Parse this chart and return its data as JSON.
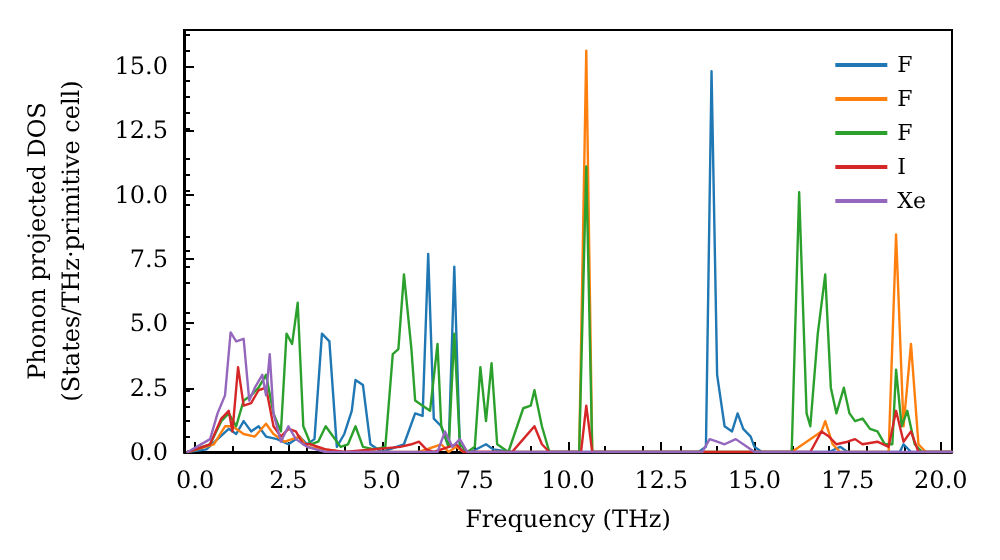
{
  "chart_data": {
    "type": "line",
    "xlabel": "Frequency (THz)",
    "ylabel": "Phonon projected DOS\n(States/THz·primitive cell)",
    "xlim": [
      -0.3,
      20.3
    ],
    "ylim": [
      0,
      16.4
    ],
    "xticks": [
      {
        "value": 0,
        "label": "0.0"
      },
      {
        "value": 2.5,
        "label": "2.5"
      },
      {
        "value": 5,
        "label": "5.0"
      },
      {
        "value": 7.5,
        "label": "7.5"
      },
      {
        "value": 10,
        "label": "10.0"
      },
      {
        "value": 12.5,
        "label": "12.5"
      },
      {
        "value": 15,
        "label": "15.0"
      },
      {
        "value": 17.5,
        "label": "17.5"
      },
      {
        "value": 20,
        "label": "20.0"
      }
    ],
    "yticks": [
      {
        "value": 0,
        "label": "0.0"
      },
      {
        "value": 2.5,
        "label": "2.5"
      },
      {
        "value": 5,
        "label": "5.0"
      },
      {
        "value": 7.5,
        "label": "7.5"
      },
      {
        "value": 10,
        "label": "10.0"
      },
      {
        "value": 12.5,
        "label": "12.5"
      },
      {
        "value": 15,
        "label": "15.0"
      }
    ],
    "grid": false,
    "legend": "top right",
    "marker": "none",
    "line_style": "solid",
    "series": [
      {
        "name": "F",
        "color": "#1f77b4",
        "x": [
          -0.2,
          0.3,
          0.6,
          0.9,
          1.1,
          1.3,
          1.5,
          1.7,
          1.9,
          2.2,
          2.5,
          2.8,
          3.0,
          3.2,
          3.4,
          3.6,
          3.8,
          4.0,
          4.2,
          4.3,
          4.5,
          4.7,
          5.0,
          5.6,
          5.9,
          6.1,
          6.25,
          6.4,
          6.6,
          6.8,
          6.95,
          7.1,
          7.4,
          7.8,
          8.0,
          8.5,
          13.5,
          13.7,
          13.85,
          14.0,
          14.2,
          14.4,
          14.55,
          14.7,
          14.9,
          15.0,
          15.2,
          17.0,
          17.3,
          17.5,
          18.9,
          19.0,
          19.2,
          20.3
        ],
        "values": [
          0,
          0.1,
          0.5,
          0.9,
          0.7,
          1.2,
          0.8,
          1.0,
          0.6,
          0.5,
          0.3,
          0.6,
          0.3,
          0.5,
          4.6,
          4.3,
          0.2,
          0.7,
          1.6,
          2.8,
          2.6,
          0.3,
          0,
          0.3,
          1.5,
          1.4,
          7.7,
          1.3,
          1.0,
          0.2,
          7.2,
          0.1,
          0,
          0.3,
          0.1,
          0,
          0,
          0.2,
          14.8,
          3.0,
          1.0,
          0.8,
          1.5,
          0.9,
          0.6,
          0.2,
          0,
          0,
          0.2,
          0,
          0,
          0.3,
          0,
          0
        ]
      },
      {
        "name": "F",
        "color": "#ff7f0e",
        "x": [
          -0.2,
          0.5,
          0.8,
          1.0,
          1.3,
          1.6,
          1.9,
          2.1,
          2.4,
          2.8,
          3.0,
          3.5,
          4.0,
          6.0,
          6.6,
          6.8,
          7.0,
          7.2,
          10.3,
          10.49,
          10.65,
          16.0,
          16.8,
          16.9,
          17.1,
          17.3,
          18.6,
          18.8,
          19.0,
          19.2,
          19.4,
          19.6,
          20.3
        ],
        "values": [
          0,
          0.3,
          1.0,
          1.0,
          0.7,
          0.6,
          1.1,
          0.7,
          0.4,
          0.6,
          0.2,
          0.1,
          0,
          0,
          0.3,
          0,
          0.2,
          0,
          0,
          15.6,
          0,
          0,
          0.8,
          1.2,
          0.3,
          0,
          0,
          8.45,
          1.0,
          4.2,
          0.3,
          0,
          0
        ]
      },
      {
        "name": "F",
        "color": "#2ca02c",
        "x": [
          -0.2,
          0.4,
          0.7,
          0.9,
          1.1,
          1.3,
          1.5,
          1.7,
          1.9,
          2.1,
          2.3,
          2.45,
          2.6,
          2.75,
          2.9,
          3.1,
          3.3,
          3.5,
          3.7,
          3.9,
          4.1,
          4.3,
          4.5,
          4.8,
          5.1,
          5.3,
          5.45,
          5.6,
          5.8,
          5.9,
          6.1,
          6.3,
          6.5,
          6.6,
          6.8,
          6.95,
          7.1,
          7.3,
          7.5,
          7.65,
          7.8,
          7.95,
          8.1,
          8.4,
          8.8,
          9.0,
          9.1,
          9.3,
          9.5,
          10.3,
          10.49,
          10.65,
          16.0,
          16.2,
          16.4,
          16.5,
          16.7,
          16.9,
          17.05,
          17.2,
          17.4,
          17.55,
          17.7,
          17.9,
          18.1,
          18.3,
          18.5,
          18.7,
          18.8,
          18.95,
          19.1,
          19.3,
          19.5,
          20.3
        ],
        "values": [
          0,
          0.3,
          1.2,
          1.5,
          1.0,
          2.0,
          2.2,
          2.5,
          3.0,
          1.5,
          0.8,
          4.6,
          4.2,
          5.8,
          1.0,
          0.3,
          0.4,
          1.0,
          0.6,
          0.2,
          0.3,
          1.0,
          0.2,
          0.1,
          0.2,
          3.8,
          4.0,
          6.9,
          4.0,
          2.0,
          1.8,
          1.6,
          4.2,
          1.0,
          0.2,
          4.6,
          0.3,
          0,
          0.2,
          3.3,
          1.2,
          3.45,
          0.3,
          0,
          1.7,
          1.8,
          2.4,
          1.0,
          0,
          0,
          11.1,
          0,
          0,
          10.1,
          1.5,
          1.0,
          4.6,
          6.9,
          2.5,
          1.5,
          2.5,
          1.5,
          1.2,
          1.3,
          0.9,
          0.8,
          0.3,
          0.3,
          3.2,
          1.0,
          1.6,
          0.3,
          0,
          0
        ]
      },
      {
        "name": "I",
        "color": "#d62728",
        "x": [
          -0.2,
          0.4,
          0.7,
          0.9,
          1.0,
          1.15,
          1.3,
          1.5,
          1.7,
          1.9,
          2.1,
          2.3,
          2.5,
          2.7,
          2.9,
          3.1,
          3.3,
          3.5,
          4.0,
          5.5,
          5.8,
          6.0,
          6.2,
          6.4,
          7.0,
          7.2,
          8.5,
          8.8,
          9.1,
          9.3,
          9.5,
          10.35,
          10.49,
          10.65,
          16.5,
          16.8,
          17.0,
          17.2,
          17.5,
          17.7,
          17.9,
          18.3,
          18.6,
          18.8,
          19.0,
          19.2,
          19.4,
          20.3
        ],
        "values": [
          0,
          0.3,
          1.3,
          1.6,
          0.8,
          3.3,
          1.8,
          1.9,
          2.4,
          2.5,
          1.0,
          0.6,
          0.9,
          0.8,
          0.3,
          0.3,
          0.2,
          0.1,
          0,
          0.2,
          0.3,
          0.4,
          0.1,
          0,
          0.3,
          0,
          0,
          0.5,
          1.0,
          0.3,
          0,
          0,
          1.8,
          0,
          0,
          0.8,
          0.6,
          0.3,
          0.4,
          0.5,
          0.3,
          0.4,
          0.2,
          1.6,
          0.4,
          0.8,
          0,
          0
        ]
      },
      {
        "name": "Xe",
        "color": "#9467bd",
        "x": [
          -0.2,
          0.4,
          0.6,
          0.8,
          0.95,
          1.1,
          1.3,
          1.45,
          1.6,
          1.8,
          1.9,
          2.0,
          2.1,
          2.3,
          2.5,
          2.7,
          3.0,
          3.5,
          6.5,
          6.7,
          6.9,
          7.1,
          7.3,
          13.6,
          13.8,
          14.0,
          14.2,
          14.5,
          14.8,
          15.0,
          20.3
        ],
        "values": [
          0,
          0.5,
          1.5,
          2.2,
          4.65,
          4.3,
          4.4,
          2.0,
          2.5,
          3.0,
          2.2,
          3.8,
          1.5,
          0.4,
          1.0,
          0.5,
          0.2,
          0,
          0,
          0.8,
          0.2,
          0.5,
          0,
          0,
          0.5,
          0.4,
          0.3,
          0.5,
          0.2,
          0,
          0
        ]
      }
    ]
  }
}
